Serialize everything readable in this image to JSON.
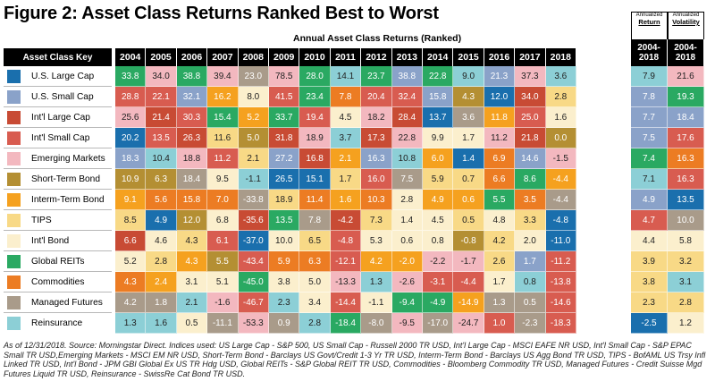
{
  "title": "Figure 2: Asset Class Returns Ranked Best to Worst",
  "chart_data": {
    "type": "table",
    "title": "Figure 2: Asset Class Returns Ranked Best to Worst",
    "subtitle": "Annual Asset Class Returns (Ranked)",
    "key_header": "Asset Class Key",
    "annualized_return_label": "Annualized",
    "annualized_return_label2": "Return",
    "annualized_vol_label": "Annualized",
    "annualized_vol_label2": "Volatility",
    "ann_header": "2004-\n2018",
    "years": [
      "2004",
      "2005",
      "2006",
      "2007",
      "2008",
      "2009",
      "2010",
      "2011",
      "2012",
      "2013",
      "2014",
      "2015",
      "2016",
      "2017",
      "2018"
    ],
    "assets": [
      {
        "name": "U.S. Large Cap",
        "color": "#1a6fad",
        "text": "#fff"
      },
      {
        "name": "U.S. Small Cap",
        "color": "#8aa2c9",
        "text": "#fff"
      },
      {
        "name": "Int'l Large Cap",
        "color": "#c84b34",
        "text": "#fff"
      },
      {
        "name": "Int'l Small Cap",
        "color": "#d85c50",
        "text": "#fff"
      },
      {
        "name": "Emerging Markets",
        "color": "#f3b8bf",
        "text": "#222"
      },
      {
        "name": "Short-Term Bond",
        "color": "#b48f33",
        "text": "#fff"
      },
      {
        "name": "Interm-Term Bond",
        "color": "#f5a11f",
        "text": "#fff"
      },
      {
        "name": "TIPS",
        "color": "#f8d986",
        "text": "#222"
      },
      {
        "name": "Int'l Bond",
        "color": "#fbefcd",
        "text": "#222"
      },
      {
        "name": "Global REITs",
        "color": "#2aa962",
        "text": "#fff"
      },
      {
        "name": "Commodities",
        "color": "#ec7c23",
        "text": "#fff"
      },
      {
        "name": "Managed Futures",
        "color": "#a99b8a",
        "text": "#fff"
      },
      {
        "name": "Reinsurance",
        "color": "#8ccfd6",
        "text": "#222"
      }
    ],
    "grid": [
      [
        [
          9,
          "33.8"
        ],
        [
          4,
          "34.0"
        ],
        [
          9,
          "38.8"
        ],
        [
          4,
          "39.4"
        ],
        [
          11,
          "23.0"
        ],
        [
          4,
          "78.5"
        ],
        [
          9,
          "28.0"
        ],
        [
          12,
          "14.1"
        ],
        [
          9,
          "23.7"
        ],
        [
          1,
          "38.8"
        ],
        [
          9,
          "22.8"
        ],
        [
          12,
          "9.0"
        ],
        [
          1,
          "21.3"
        ],
        [
          4,
          "37.3"
        ],
        [
          12,
          "3.6"
        ]
      ],
      [
        [
          3,
          "28.8"
        ],
        [
          3,
          "22.1"
        ],
        [
          1,
          "32.1"
        ],
        [
          6,
          "16.2"
        ],
        [
          8,
          "8.0"
        ],
        [
          3,
          "41.5"
        ],
        [
          9,
          "23.4"
        ],
        [
          10,
          "7.8"
        ],
        [
          3,
          "20.4"
        ],
        [
          3,
          "32.4"
        ],
        [
          1,
          "15.8"
        ],
        [
          5,
          "4.3"
        ],
        [
          0,
          "12.0"
        ],
        [
          2,
          "34.0"
        ],
        [
          7,
          "2.8"
        ]
      ],
      [
        [
          4,
          "25.6"
        ],
        [
          2,
          "21.4"
        ],
        [
          3,
          "30.3"
        ],
        [
          9,
          "15.4"
        ],
        [
          6,
          "5.2"
        ],
        [
          9,
          "33.7"
        ],
        [
          3,
          "19.4"
        ],
        [
          8,
          "4.5"
        ],
        [
          4,
          "18.2"
        ],
        [
          2,
          "28.4"
        ],
        [
          0,
          "13.7"
        ],
        [
          11,
          "3.6"
        ],
        [
          6,
          "11.8"
        ],
        [
          3,
          "25.0"
        ],
        [
          8,
          "1.6"
        ]
      ],
      [
        [
          0,
          "20.2"
        ],
        [
          3,
          "13.5"
        ],
        [
          2,
          "26.3"
        ],
        [
          7,
          "11.6"
        ],
        [
          5,
          "5.0"
        ],
        [
          2,
          "31.8"
        ],
        [
          4,
          "18.9"
        ],
        [
          12,
          "3.7"
        ],
        [
          2,
          "17.3"
        ],
        [
          4,
          "22.8"
        ],
        [
          8,
          "9.9"
        ],
        [
          8,
          "1.7"
        ],
        [
          4,
          "11.2"
        ],
        [
          2,
          "21.8"
        ],
        [
          5,
          "0.0"
        ]
      ],
      [
        [
          1,
          "18.3"
        ],
        [
          12,
          "10.4"
        ],
        [
          4,
          "18.8"
        ],
        [
          3,
          "11.2"
        ],
        [
          7,
          "2.1"
        ],
        [
          1,
          "27.2"
        ],
        [
          2,
          "16.8"
        ],
        [
          6,
          "2.1"
        ],
        [
          1,
          "16.3"
        ],
        [
          12,
          "10.8"
        ],
        [
          6,
          "6.0"
        ],
        [
          0,
          "1.4"
        ],
        [
          10,
          "6.9"
        ],
        [
          1,
          "14.6"
        ],
        [
          4,
          "-1.5"
        ]
      ],
      [
        [
          5,
          "10.9"
        ],
        [
          5,
          "6.3"
        ],
        [
          11,
          "18.4"
        ],
        [
          8,
          "9.5"
        ],
        [
          12,
          "-1.1"
        ],
        [
          0,
          "26.5"
        ],
        [
          0,
          "15.1"
        ],
        [
          7,
          "1.7"
        ],
        [
          3,
          "16.0"
        ],
        [
          11,
          "7.5"
        ],
        [
          7,
          "5.9"
        ],
        [
          7,
          "0.7"
        ],
        [
          10,
          "6.6"
        ],
        [
          9,
          "8.6"
        ],
        [
          6,
          "-4.4"
        ]
      ],
      [
        [
          6,
          "9.1"
        ],
        [
          10,
          "5.6"
        ],
        [
          10,
          "15.8"
        ],
        [
          10,
          "7.0"
        ],
        [
          11,
          "-33.8"
        ],
        [
          7,
          "18.9"
        ],
        [
          10,
          "11.4"
        ],
        [
          6,
          "1.6"
        ],
        [
          10,
          "10.3"
        ],
        [
          8,
          "2.8"
        ],
        [
          6,
          "4.9"
        ],
        [
          6,
          "0.6"
        ],
        [
          9,
          "5.5"
        ],
        [
          10,
          "3.5"
        ],
        [
          11,
          "-4.4"
        ]
      ],
      [
        [
          7,
          "8.5"
        ],
        [
          0,
          "4.9"
        ],
        [
          5,
          "12.0"
        ],
        [
          8,
          "6.8"
        ],
        [
          2,
          "-35.6"
        ],
        [
          9,
          "13.5"
        ],
        [
          11,
          "7.8"
        ],
        [
          2,
          "-4.2"
        ],
        [
          7,
          "7.3"
        ],
        [
          8,
          "1.4"
        ],
        [
          8,
          "4.5"
        ],
        [
          7,
          "0.5"
        ],
        [
          8,
          "4.8"
        ],
        [
          7,
          "3.3"
        ],
        [
          0,
          "-4.8"
        ]
      ],
      [
        [
          2,
          "6.6"
        ],
        [
          8,
          "4.6"
        ],
        [
          7,
          "4.3"
        ],
        [
          3,
          "6.1"
        ],
        [
          0,
          "-37.0"
        ],
        [
          8,
          "10.0"
        ],
        [
          7,
          "6.5"
        ],
        [
          3,
          "-4.8"
        ],
        [
          8,
          "5.3"
        ],
        [
          8,
          "0.6"
        ],
        [
          8,
          "0.8"
        ],
        [
          5,
          "-0.8"
        ],
        [
          7,
          "4.2"
        ],
        [
          8,
          "2.0"
        ],
        [
          0,
          "-11.0"
        ]
      ],
      [
        [
          8,
          "5.2"
        ],
        [
          7,
          "2.8"
        ],
        [
          6,
          "4.3"
        ],
        [
          5,
          "5.5"
        ],
        [
          3,
          "-43.4"
        ],
        [
          10,
          "5.9"
        ],
        [
          10,
          "6.3"
        ],
        [
          3,
          "-12.1"
        ],
        [
          6,
          "4.2"
        ],
        [
          6,
          "-2.0"
        ],
        [
          4,
          "-2.2"
        ],
        [
          4,
          "-1.7"
        ],
        [
          7,
          "2.6"
        ],
        [
          1,
          "1.7"
        ],
        [
          3,
          "-11.2"
        ]
      ],
      [
        [
          10,
          "4.3"
        ],
        [
          6,
          "2.4"
        ],
        [
          8,
          "3.1"
        ],
        [
          8,
          "5.1"
        ],
        [
          9,
          "-45.0"
        ],
        [
          8,
          "3.8"
        ],
        [
          8,
          "5.0"
        ],
        [
          4,
          "-13.3"
        ],
        [
          12,
          "1.3"
        ],
        [
          4,
          "-2.6"
        ],
        [
          3,
          "-3.1"
        ],
        [
          3,
          "-4.4"
        ],
        [
          8,
          "1.7"
        ],
        [
          12,
          "0.8"
        ],
        [
          3,
          "-13.8"
        ]
      ],
      [
        [
          11,
          "4.2"
        ],
        [
          11,
          "1.8"
        ],
        [
          12,
          "2.1"
        ],
        [
          4,
          "-1.6"
        ],
        [
          3,
          "-46.7"
        ],
        [
          12,
          "2.3"
        ],
        [
          8,
          "3.4"
        ],
        [
          3,
          "-14.4"
        ],
        [
          8,
          "-1.1"
        ],
        [
          9,
          "-9.4"
        ],
        [
          9,
          "-4.9"
        ],
        [
          6,
          "-14.9"
        ],
        [
          11,
          "1.3"
        ],
        [
          11,
          "0.5"
        ],
        [
          3,
          "-14.6"
        ]
      ],
      [
        [
          12,
          "1.3"
        ],
        [
          12,
          "1.6"
        ],
        [
          8,
          "0.5"
        ],
        [
          11,
          "-11.1"
        ],
        [
          4,
          "-53.3"
        ],
        [
          11,
          "0.9"
        ],
        [
          12,
          "2.8"
        ],
        [
          9,
          "-18.4"
        ],
        [
          11,
          "-8.0"
        ],
        [
          4,
          "-9.5"
        ],
        [
          11,
          "-17.0"
        ],
        [
          4,
          "-24.7"
        ],
        [
          3,
          "1.0"
        ],
        [
          11,
          "-2.3"
        ],
        [
          3,
          "-18.3"
        ]
      ]
    ],
    "annualized": [
      [
        [
          12,
          "7.9"
        ],
        [
          4,
          "21.6"
        ]
      ],
      [
        [
          1,
          "7.8"
        ],
        [
          9,
          "19.3"
        ]
      ],
      [
        [
          1,
          "7.7"
        ],
        [
          1,
          "18.4"
        ]
      ],
      [
        [
          1,
          "7.5"
        ],
        [
          3,
          "17.6"
        ]
      ],
      [
        [
          9,
          "7.4"
        ],
        [
          10,
          "16.3"
        ]
      ],
      [
        [
          12,
          "7.1"
        ],
        [
          3,
          "16.3"
        ]
      ],
      [
        [
          1,
          "4.9"
        ],
        [
          0,
          "13.5"
        ]
      ],
      [
        [
          3,
          "4.7"
        ],
        [
          11,
          "10.0"
        ]
      ],
      [
        [
          8,
          "4.4"
        ],
        [
          8,
          "5.8"
        ]
      ],
      [
        [
          7,
          "3.9"
        ],
        [
          7,
          "3.2"
        ]
      ],
      [
        [
          7,
          "3.8"
        ],
        [
          12,
          "3.1"
        ]
      ],
      [
        [
          7,
          "2.3"
        ],
        [
          7,
          "2.8"
        ]
      ],
      [
        [
          0,
          "-2.5"
        ],
        [
          8,
          "1.2"
        ]
      ]
    ]
  },
  "footnote": "As of 12/31/2018. Source: Morningstar Direct. Indices used: US Large Cap - S&P 500, US Small Cap - Russell 2000 TR USD, Int'l Large Cap - MSCI EAFE NR USD, Int'l Small Cap - S&P EPAC Small TR USD,Emerging Markets - MSCI EM NR USD, Short-Term Bond - Barclays US Govt/Credit 1-3 Yr TR USD, Interm-Term Bond - Barclays US Agg Bond TR USD, TIPS - BofAML US Trsy Infl Linked TR USD, Int'l Bond - JPM GBI Global Ex US TR Hdg USD, Global REITs - S&P Global REIT TR USD, Commodities - Bloomberg Commodity TR USD, Managed Futures - Credit Suisse Mgd Futures Liquid TR USD, Reinsurance - SwissRe Cat Bond TR USD."
}
